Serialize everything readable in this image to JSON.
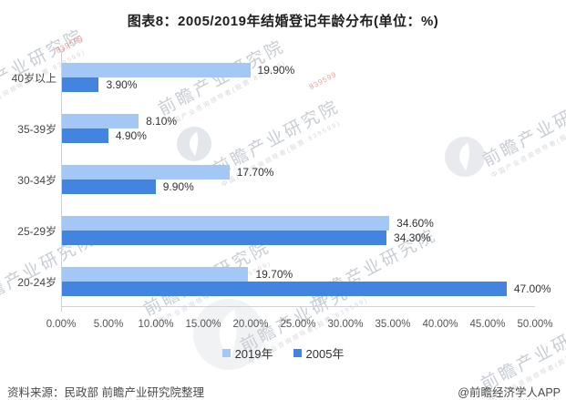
{
  "chart_data": {
    "type": "bar",
    "orientation": "horizontal",
    "title": "图表8：2005/2019年结婚登记年龄分布(单位：%)",
    "categories": [
      "40岁以上",
      "35-39岁",
      "30-34岁",
      "25-29岁",
      "20-24岁"
    ],
    "series": [
      {
        "key": "2019",
        "name": "2019年",
        "color": "#A4C8F5",
        "values": [
          19.9,
          8.1,
          17.7,
          34.6,
          19.7
        ],
        "labels": [
          "19.90%",
          "8.10%",
          "17.70%",
          "34.60%",
          "19.70%"
        ]
      },
      {
        "key": "2005",
        "name": "2005年",
        "color": "#4285E1",
        "values": [
          3.9,
          4.9,
          9.9,
          34.3,
          47.0
        ],
        "labels": [
          "3.90%",
          "4.90%",
          "9.90%",
          "34.30%",
          "47.00%"
        ]
      }
    ],
    "xlim": [
      0,
      50
    ],
    "x_ticks": [
      "0.00%",
      "5.00%",
      "10.00%",
      "15.00%",
      "20.00%",
      "25.00%",
      "30.00%",
      "35.00%",
      "40.00%",
      "45.00%",
      "50.00%"
    ],
    "xlabel": "",
    "ylabel": "",
    "grid": false,
    "legend_position": "bottom"
  },
  "legend": {
    "items": [
      {
        "label": "2019年",
        "color": "#A4C8F5"
      },
      {
        "label": "2005年",
        "color": "#4285E1"
      }
    ]
  },
  "footer": {
    "source": "资料来源：民政部 前瞻产业研究院整理",
    "credit": "@前瞻经济学人APP"
  },
  "watermark": {
    "text": "前瞻产业研究院",
    "subtext": "中国产业咨询领导者(股票·839599)",
    "digits": "839599"
  }
}
